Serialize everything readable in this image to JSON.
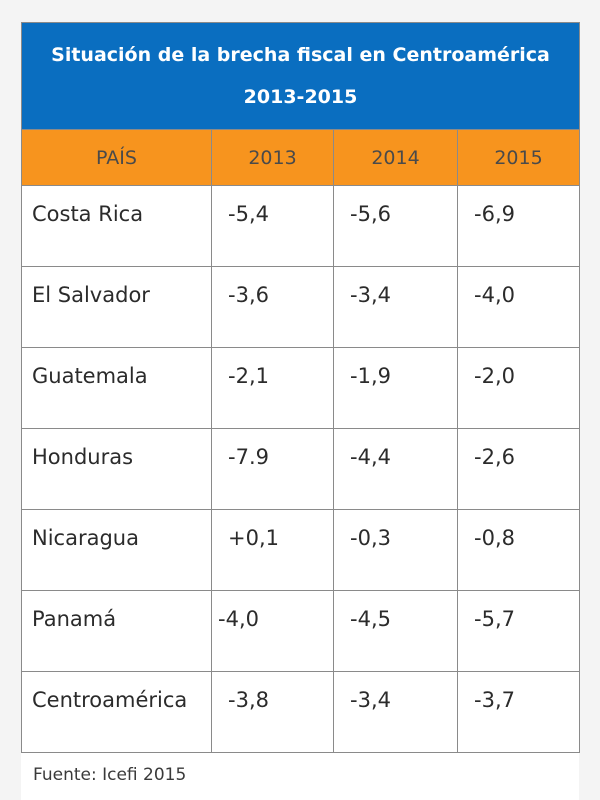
{
  "chart_data": {
    "type": "table",
    "title": "Situación de la brecha fiscal en Centroamérica",
    "subtitle": "2013-2015",
    "columns": [
      "PAÍS",
      "2013",
      "2014",
      "2015"
    ],
    "rows": [
      {
        "label": "Costa Rica",
        "values": [
          "-5,4",
          "-5,6",
          "-6,9"
        ]
      },
      {
        "label": "El Salvador",
        "values": [
          "-3,6",
          "-3,4",
          "-4,0"
        ]
      },
      {
        "label": "Guatemala",
        "values": [
          "-2,1",
          "-1,9",
          "-2,0"
        ]
      },
      {
        "label": "Honduras",
        "values": [
          "-7.9",
          "-4,4",
          "-2,6"
        ]
      },
      {
        "label": "Nicaragua",
        "values": [
          "+0,1",
          "-0,3",
          "-0,8"
        ]
      },
      {
        "label": "Panamá",
        "values": [
          "-4,0",
          "-4,5",
          "-5,7"
        ]
      },
      {
        "label": "Centroamérica",
        "values": [
          "-3,8",
          "-3,4",
          "-3,7"
        ]
      }
    ],
    "source": "Fuente: Icefi 2015",
    "colors": {
      "title_bg": "#0a6ec0",
      "header_bg": "#f7941e"
    }
  }
}
